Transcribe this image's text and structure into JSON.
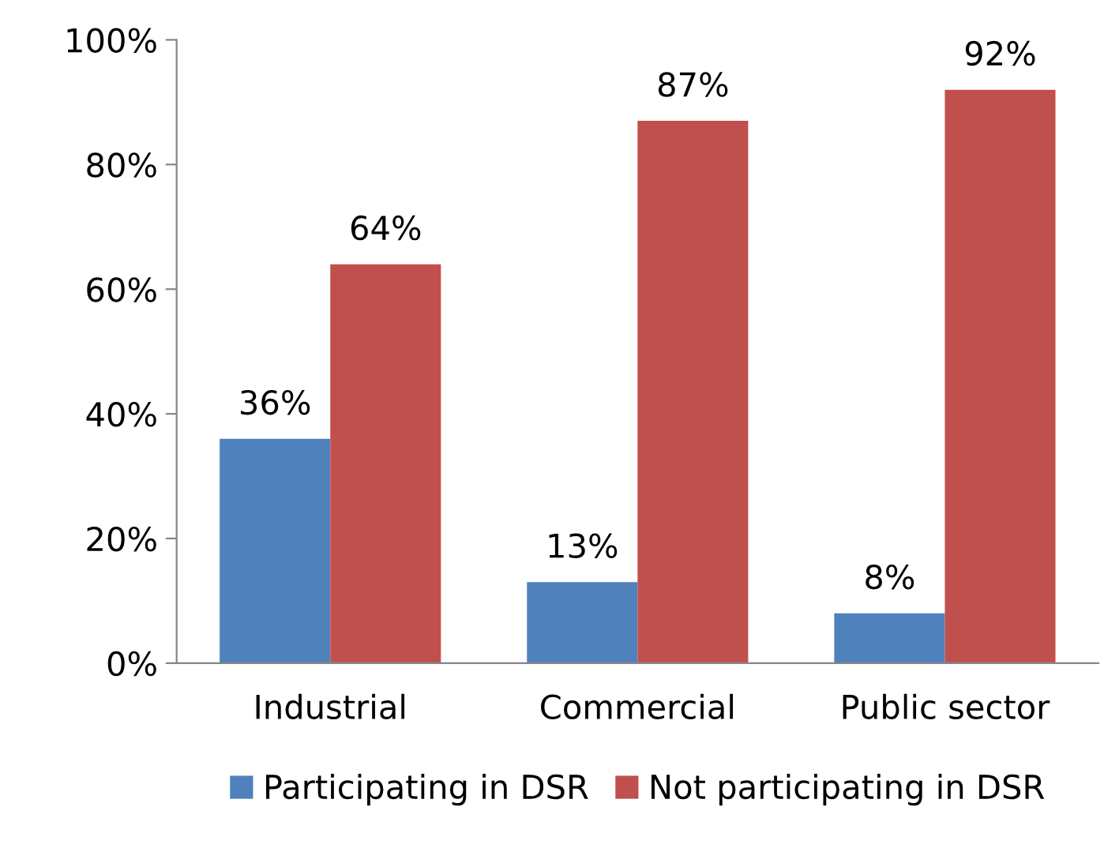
{
  "chart_data": {
    "type": "bar",
    "categories": [
      "Industrial",
      "Commercial",
      "Public sector"
    ],
    "series": [
      {
        "name": "Participating in DSR",
        "color": "#4f81bd",
        "values": [
          36,
          13,
          8
        ],
        "value_labels": [
          "36%",
          "13%",
          "8%"
        ]
      },
      {
        "name": "Not participating in DSR",
        "color": "#c0504d",
        "values": [
          64,
          87,
          92
        ],
        "value_labels": [
          "64%",
          "87%",
          "92%"
        ]
      }
    ],
    "ylim": [
      0,
      100
    ],
    "yticks": [
      {
        "value": 0,
        "label": "0%"
      },
      {
        "value": 20,
        "label": "20%"
      },
      {
        "value": 40,
        "label": "40%"
      },
      {
        "value": 60,
        "label": "60%"
      },
      {
        "value": 80,
        "label": "80%"
      },
      {
        "value": 100,
        "label": "100%"
      }
    ],
    "grid": false,
    "legend": "bottom"
  }
}
